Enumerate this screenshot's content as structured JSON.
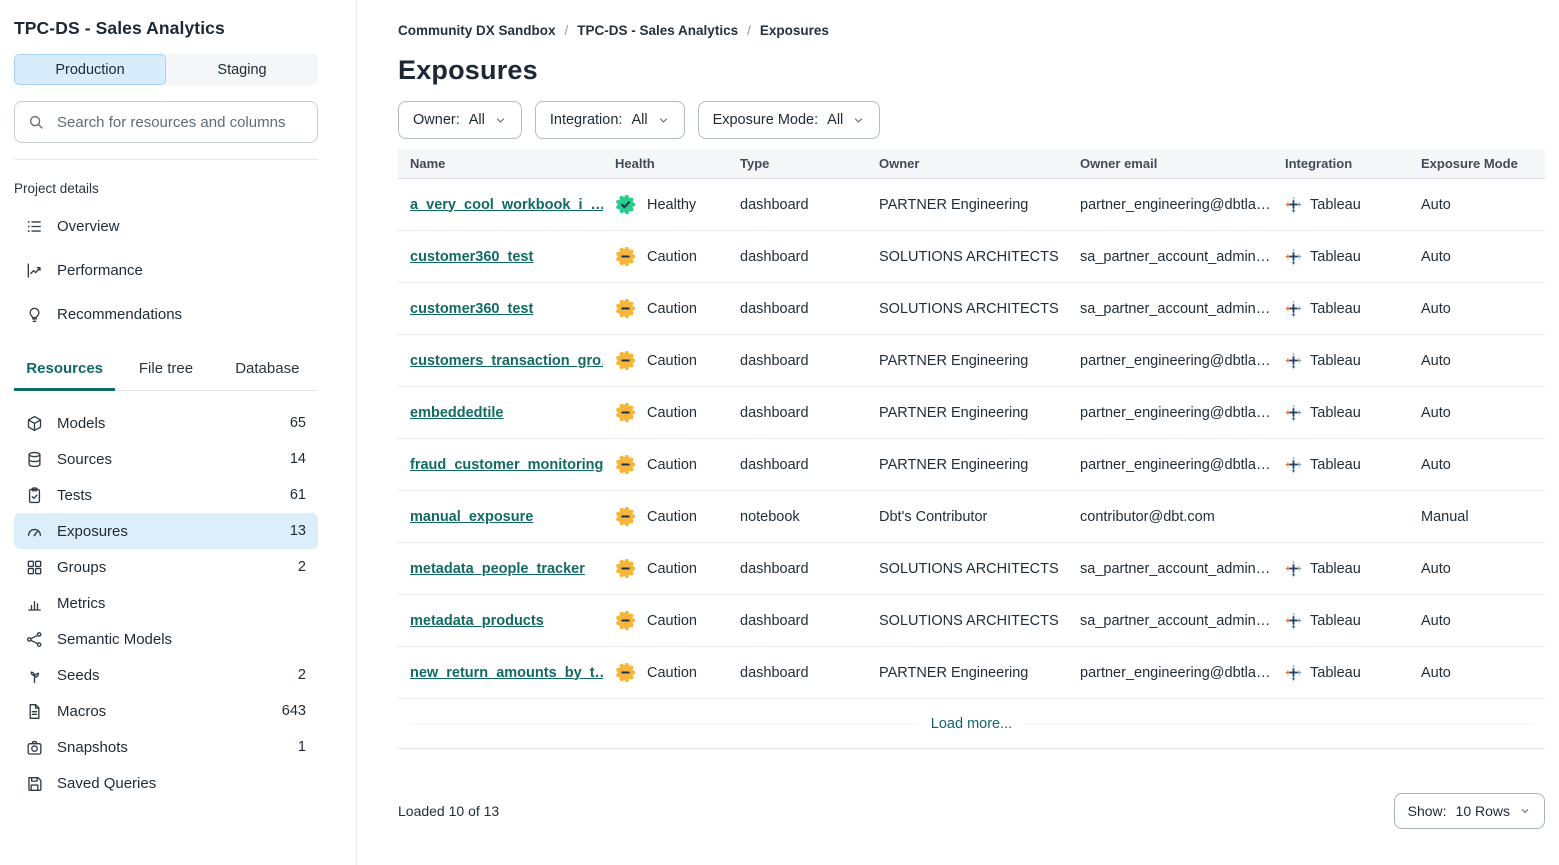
{
  "colors": {
    "accent_teal": "#0f6a6a",
    "link_teal": "#116b63",
    "healthy": "#2bcd8e",
    "caution": "#f5b63d",
    "selected_blue": "#ddeefb",
    "toggle_active_blue": "#d9ecfc"
  },
  "sidebar": {
    "project_title": "TPC-DS - Sales Analytics",
    "environment_toggle": {
      "options": [
        "Production",
        "Staging"
      ],
      "active": "Production"
    },
    "search": {
      "placeholder": "Search for resources and columns"
    },
    "section_label": "Project details",
    "project_links": [
      {
        "label": "Overview",
        "icon": "overview"
      },
      {
        "label": "Performance",
        "icon": "performance"
      },
      {
        "label": "Recommendations",
        "icon": "recommendations"
      }
    ],
    "tabs": [
      {
        "label": "Resources",
        "active": true
      },
      {
        "label": "File tree",
        "active": false
      },
      {
        "label": "Database",
        "active": false
      }
    ],
    "resources": [
      {
        "label": "Models",
        "count": "65",
        "icon": "models",
        "selected": false
      },
      {
        "label": "Sources",
        "count": "14",
        "icon": "sources",
        "selected": false
      },
      {
        "label": "Tests",
        "count": "61",
        "icon": "tests",
        "selected": false
      },
      {
        "label": "Exposures",
        "count": "13",
        "icon": "exposures",
        "selected": true
      },
      {
        "label": "Groups",
        "count": "2",
        "icon": "groups",
        "selected": false
      },
      {
        "label": "Metrics",
        "count": "",
        "icon": "metrics",
        "selected": false
      },
      {
        "label": "Semantic Models",
        "count": "",
        "icon": "semantic-models",
        "selected": false
      },
      {
        "label": "Seeds",
        "count": "2",
        "icon": "seeds",
        "selected": false
      },
      {
        "label": "Macros",
        "count": "643",
        "icon": "macros",
        "selected": false
      },
      {
        "label": "Snapshots",
        "count": "1",
        "icon": "snapshots",
        "selected": false
      },
      {
        "label": "Saved Queries",
        "count": "",
        "icon": "saved-queries",
        "selected": false
      }
    ]
  },
  "main": {
    "breadcrumb": [
      "Community DX Sandbox",
      "TPC-DS - Sales Analytics",
      "Exposures"
    ],
    "page_title": "Exposures",
    "filters": [
      {
        "label": "Owner:",
        "value": "All"
      },
      {
        "label": "Integration:",
        "value": "All"
      },
      {
        "label": "Exposure Mode:",
        "value": "All"
      }
    ],
    "table": {
      "columns": [
        "Name",
        "Health",
        "Type",
        "Owner",
        "Owner email",
        "Integration",
        "Exposure Mode"
      ],
      "rows": [
        {
          "name": "a_very_cool_workbook_i_…",
          "health": "Healthy",
          "type": "dashboard",
          "owner": "PARTNER Engineering",
          "owner_email": "partner_engineering@dbtla…",
          "integration": "Tableau",
          "exposure_mode": "Auto"
        },
        {
          "name": "customer360_test",
          "health": "Caution",
          "type": "dashboard",
          "owner": "SOLUTIONS ARCHITECTS",
          "owner_email": "sa_partner_account_admin…",
          "integration": "Tableau",
          "exposure_mode": "Auto"
        },
        {
          "name": "customer360_test",
          "health": "Caution",
          "type": "dashboard",
          "owner": "SOLUTIONS ARCHITECTS",
          "owner_email": "sa_partner_account_admin…",
          "integration": "Tableau",
          "exposure_mode": "Auto"
        },
        {
          "name": "customers_transaction_gro…",
          "health": "Caution",
          "type": "dashboard",
          "owner": "PARTNER Engineering",
          "owner_email": "partner_engineering@dbtla…",
          "integration": "Tableau",
          "exposure_mode": "Auto"
        },
        {
          "name": "embeddedtile",
          "health": "Caution",
          "type": "dashboard",
          "owner": "PARTNER Engineering",
          "owner_email": "partner_engineering@dbtla…",
          "integration": "Tableau",
          "exposure_mode": "Auto"
        },
        {
          "name": "fraud_customer_monitoring",
          "health": "Caution",
          "type": "dashboard",
          "owner": "PARTNER Engineering",
          "owner_email": "partner_engineering@dbtla…",
          "integration": "Tableau",
          "exposure_mode": "Auto"
        },
        {
          "name": "manual_exposure",
          "health": "Caution",
          "type": "notebook",
          "owner": "Dbt's Contributor",
          "owner_email": "contributor@dbt.com",
          "integration": "",
          "exposure_mode": "Manual"
        },
        {
          "name": "metadata_people_tracker",
          "health": "Caution",
          "type": "dashboard",
          "owner": "SOLUTIONS ARCHITECTS",
          "owner_email": "sa_partner_account_admin…",
          "integration": "Tableau",
          "exposure_mode": "Auto"
        },
        {
          "name": "metadata_products",
          "health": "Caution",
          "type": "dashboard",
          "owner": "SOLUTIONS ARCHITECTS",
          "owner_email": "sa_partner_account_admin…",
          "integration": "Tableau",
          "exposure_mode": "Auto"
        },
        {
          "name": "new_return_amounts_by_t…",
          "health": "Caution",
          "type": "dashboard",
          "owner": "PARTNER Engineering",
          "owner_email": "partner_engineering@dbtla…",
          "integration": "Tableau",
          "exposure_mode": "Auto"
        }
      ]
    },
    "load_more_label": "Load more...",
    "footer": {
      "loaded_text": "Loaded 10 of 13",
      "show_label": "Show:",
      "show_value": "10 Rows"
    }
  }
}
